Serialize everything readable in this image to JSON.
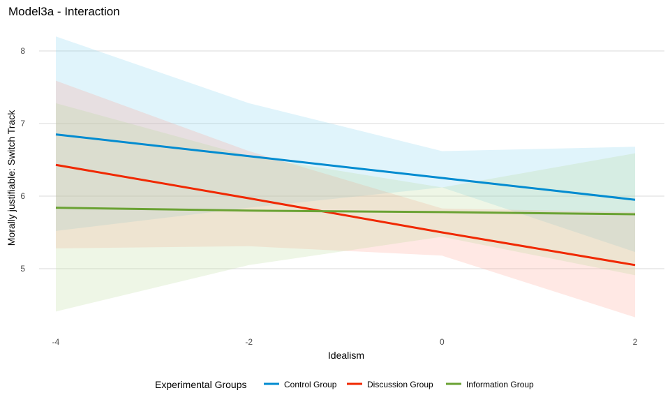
{
  "chart_data": {
    "type": "line",
    "title": "Model3a - Interaction",
    "xlabel": "Idealism",
    "ylabel": "Morally justifiable: Switch Track",
    "xlim": [
      -4,
      2
    ],
    "ylim": [
      4.2,
      8.25
    ],
    "x_ticks": [
      -4,
      -2,
      0,
      2
    ],
    "y_ticks": [
      5,
      6,
      7,
      8
    ],
    "grid": "horizontal major",
    "legend": {
      "title": "Experimental Groups",
      "position": "bottom"
    },
    "series": [
      {
        "name": "Control Group",
        "color": "#008BD0",
        "band_color": "#7FD0F0",
        "x": [
          -4,
          -2,
          0,
          2
        ],
        "y": [
          6.85,
          6.55,
          6.25,
          5.95
        ],
        "lower": [
          5.52,
          5.84,
          6.12,
          5.23
        ],
        "upper": [
          8.2,
          7.28,
          6.62,
          6.68
        ]
      },
      {
        "name": "Discussion Group",
        "color": "#F02800",
        "band_color": "#FFA090",
        "x": [
          -4,
          -2,
          0,
          2
        ],
        "y": [
          6.43,
          5.97,
          5.5,
          5.05
        ],
        "lower": [
          5.28,
          5.31,
          5.18,
          4.33
        ],
        "upper": [
          7.59,
          6.62,
          5.83,
          5.78
        ]
      },
      {
        "name": "Information Group",
        "color": "#6AA233",
        "band_color": "#B8D898",
        "x": [
          -4,
          -2,
          0,
          2
        ],
        "y": [
          5.84,
          5.8,
          5.78,
          5.75
        ],
        "lower": [
          4.41,
          5.05,
          5.44,
          4.91
        ],
        "upper": [
          7.28,
          6.55,
          6.12,
          6.59
        ]
      }
    ]
  }
}
